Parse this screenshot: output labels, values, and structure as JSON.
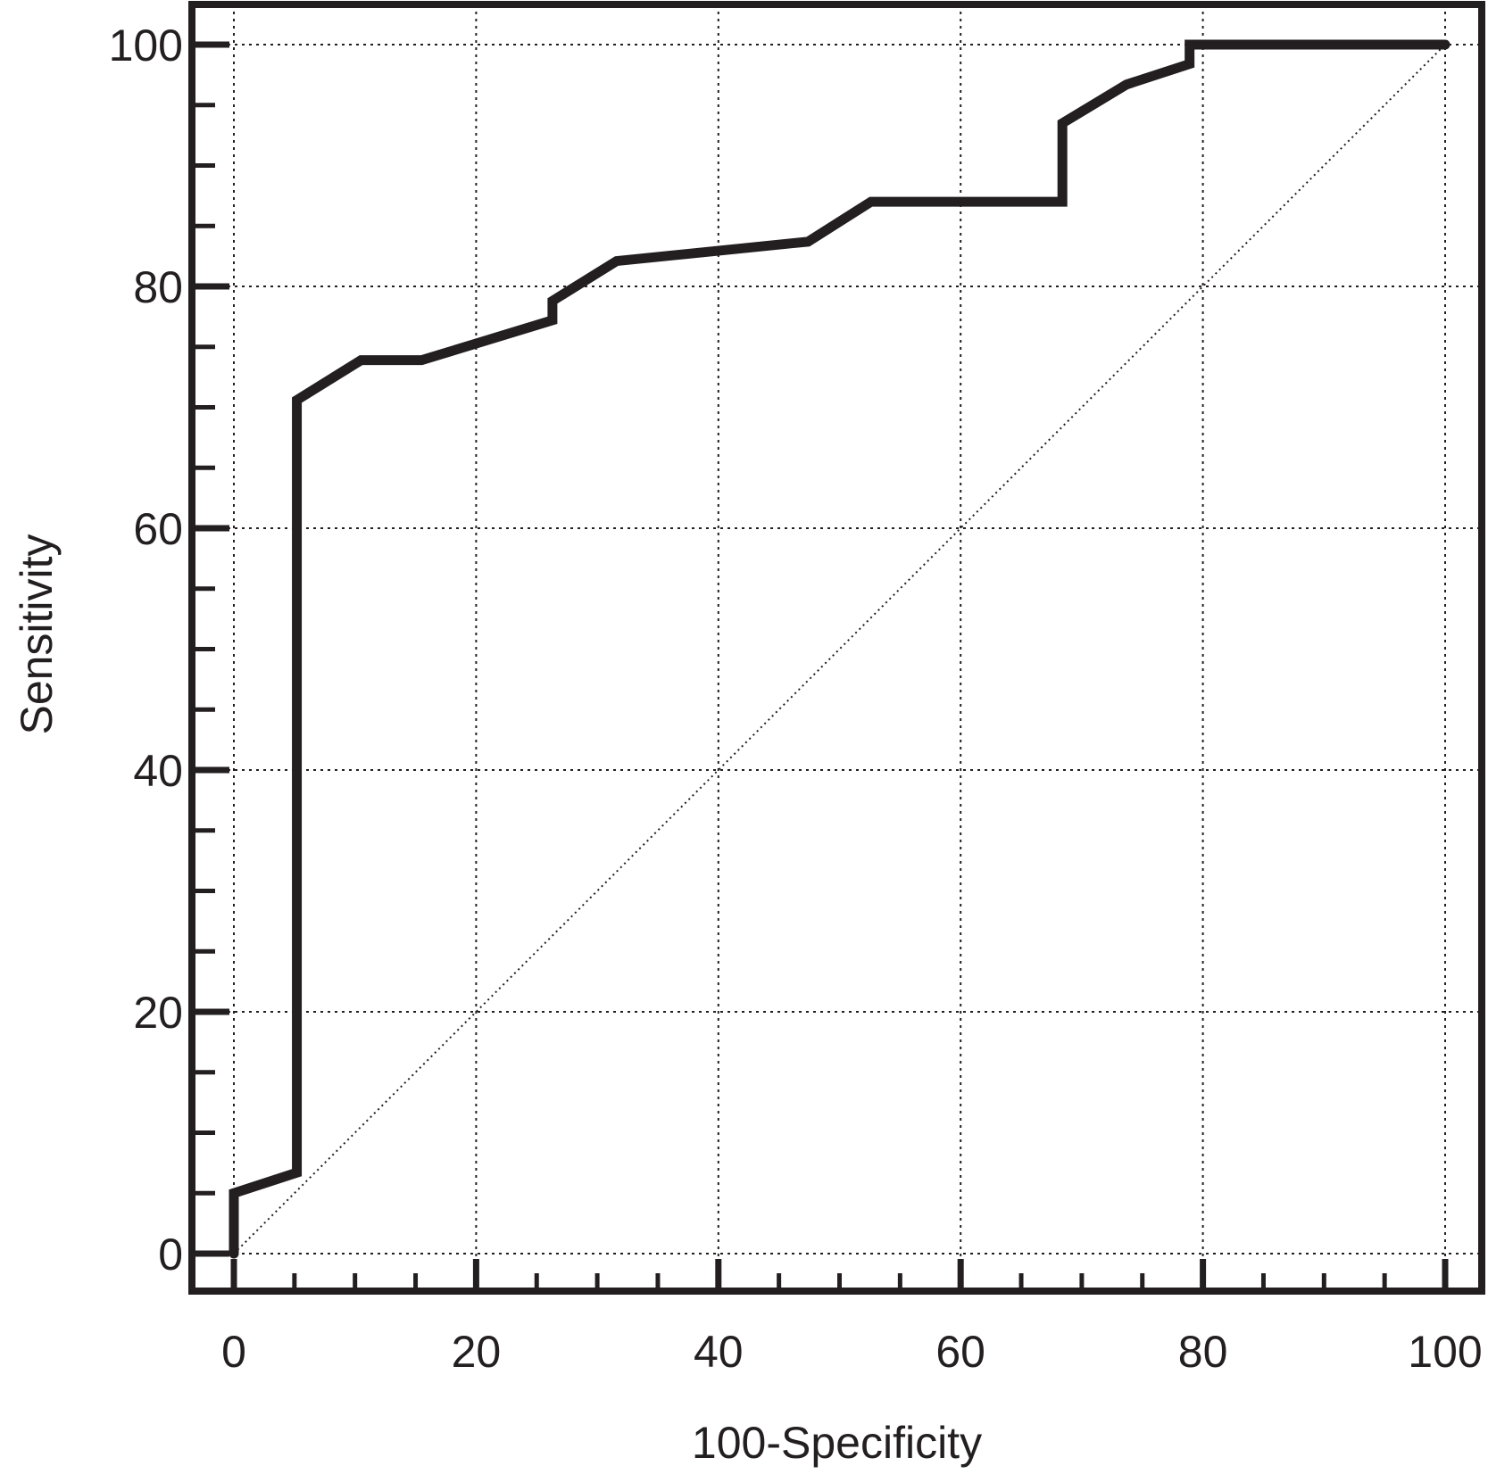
{
  "chart_data": {
    "type": "line",
    "title": "",
    "xlabel": "100-Specificity",
    "ylabel": "Sensitivity",
    "xlim": [
      0,
      100
    ],
    "ylim": [
      0,
      100
    ],
    "x_ticks": [
      0,
      20,
      40,
      60,
      80,
      100
    ],
    "x_tick_labels": [
      "0",
      "20",
      "40",
      "60",
      "80",
      "100"
    ],
    "y_ticks": [
      0,
      20,
      40,
      60,
      80,
      100
    ],
    "y_tick_labels": [
      "0",
      "20",
      "40",
      "60",
      "80",
      "100"
    ],
    "x_minor_step": 5,
    "y_minor_step": 5,
    "grid": true,
    "grid_style": "dotted",
    "legend": "none",
    "colors": {
      "curve": "#231f20",
      "frame": "#231f20",
      "grid": "#231f20",
      "reference": "#231f20"
    },
    "series": [
      {
        "x": [
          0,
          0,
          5.2,
          5.2,
          10.5,
          15.5,
          26.3,
          26.3,
          31.6,
          47.4,
          52.6,
          68.4,
          68.4,
          73.7,
          78.9,
          78.9,
          100
        ],
        "y": [
          0,
          5,
          6.7,
          70.6,
          73.9,
          73.9,
          77.2,
          78.8,
          82.1,
          83.7,
          87.0,
          87.0,
          93.5,
          96.7,
          98.4,
          100,
          100
        ]
      },
      {
        "x": [
          0,
          100
        ],
        "y": [
          0,
          100
        ],
        "style": "dotted"
      }
    ]
  }
}
